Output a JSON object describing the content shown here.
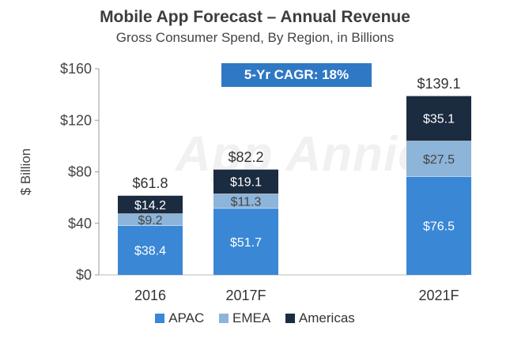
{
  "chart_data": {
    "type": "bar",
    "stacked": true,
    "title": "Mobile App Forecast – Annual Revenue",
    "subtitle": "Gross Consumer Spend, By Region, in Billions",
    "ylabel": "$ Billion",
    "xlabel": "",
    "ylim": [
      0,
      160
    ],
    "yticks": [
      0,
      40,
      80,
      120,
      160
    ],
    "ytick_labels": [
      "$0",
      "$40",
      "$80",
      "$120",
      "$160"
    ],
    "categories": [
      "2016",
      "2017F",
      "2021F"
    ],
    "totals": [
      61.8,
      82.2,
      139.1
    ],
    "total_labels": [
      "$61.8",
      "$82.2",
      "$139.1"
    ],
    "series": [
      {
        "name": "APAC",
        "color": "#3a87d6",
        "values": [
          38.4,
          51.7,
          76.5
        ],
        "labels": [
          "$38.4",
          "$51.7",
          "$76.5"
        ]
      },
      {
        "name": "EMEA",
        "color": "#8db4d9",
        "values": [
          9.2,
          11.3,
          27.5
        ],
        "labels": [
          "$9.2",
          "$11.3",
          "$27.5"
        ]
      },
      {
        "name": "Americas",
        "color": "#1b2b40",
        "values": [
          14.2,
          19.1,
          35.1
        ],
        "labels": [
          "$14.2",
          "$19.1",
          "$35.1"
        ]
      }
    ],
    "annotation": "5-Yr CAGR: 18%",
    "watermark": "App Annie",
    "legend_position": "bottom"
  }
}
